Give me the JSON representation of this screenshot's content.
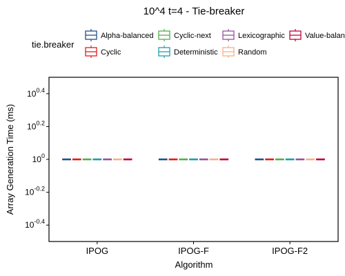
{
  "chart_data": {
    "type": "box",
    "title": "10^4 t=4 - Tie-breaker",
    "xlabel": "Algorithm",
    "ylabel": "Array Generation Time (ms)",
    "y_scale": "log10",
    "ylim_log10": [
      -0.5,
      0.5
    ],
    "y_ticks": [
      {
        "exp": -0.4,
        "base": "10",
        "sup": "-0.4"
      },
      {
        "exp": -0.2,
        "base": "10",
        "sup": "-0.2"
      },
      {
        "exp": 0,
        "base": "10",
        "sup": "0"
      },
      {
        "exp": 0.2,
        "base": "10",
        "sup": "0.2"
      },
      {
        "exp": 0.4,
        "base": "10",
        "sup": "0.4"
      }
    ],
    "categories": [
      "IPOG",
      "IPOG-F",
      "IPOG-F2"
    ],
    "legend_title": "tie.breaker",
    "legend_position": "top",
    "series": [
      {
        "name": "Alpha-balanced",
        "color": "#1f4e8c",
        "values": [
          1,
          1,
          1
        ]
      },
      {
        "name": "Cyclic",
        "color": "#e41a1c",
        "values": [
          1,
          1,
          1
        ]
      },
      {
        "name": "Cyclic-next",
        "color": "#4daf4a",
        "values": [
          1,
          1,
          1
        ]
      },
      {
        "name": "Deterministic",
        "color": "#1b9eac",
        "values": [
          1,
          1,
          1
        ]
      },
      {
        "name": "Lexicographic",
        "color": "#984ea3",
        "values": [
          1,
          1,
          1
        ]
      },
      {
        "name": "Random",
        "color": "#f4b183",
        "values": [
          1,
          1,
          1
        ]
      },
      {
        "name": "Value-balanced",
        "color": "#c2003a",
        "values": [
          1,
          1,
          1
        ]
      }
    ]
  }
}
